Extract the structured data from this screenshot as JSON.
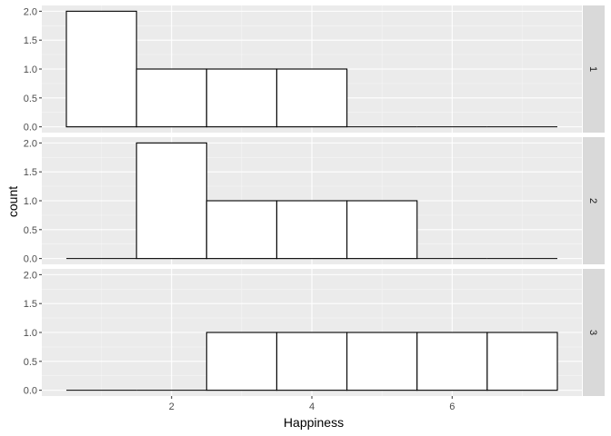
{
  "chart_data": {
    "type": "bar",
    "subtype": "faceted-histogram",
    "xlabel": "Happiness",
    "ylabel": "count",
    "x_ticks": [
      2,
      4,
      6
    ],
    "y_ticks": [
      0.0,
      0.5,
      1.0,
      1.5,
      2.0
    ],
    "y_tick_labels": [
      "0.0",
      "0.5",
      "1.0",
      "1.5",
      "2.0"
    ],
    "xlim": [
      0.5,
      7.5
    ],
    "ylim": [
      0,
      2
    ],
    "bins": [
      1,
      2,
      3,
      4,
      5,
      6,
      7
    ],
    "bin_width": 1,
    "grid": true,
    "legend": "none",
    "facets": [
      {
        "label": "1",
        "values": [
          2,
          1,
          1,
          1,
          0,
          0,
          0
        ]
      },
      {
        "label": "2",
        "values": [
          0,
          2,
          1,
          1,
          1,
          0,
          0
        ]
      },
      {
        "label": "3",
        "values": [
          0,
          0,
          1,
          1,
          1,
          1,
          1
        ]
      }
    ]
  },
  "colors": {
    "panel_background": "#ebebeb",
    "grid_major": "#ffffff",
    "grid_minor": "#f5f5f5",
    "strip_background": "#d9d9d9",
    "bar_fill": "#ffffff",
    "bar_outline": "#000000"
  }
}
